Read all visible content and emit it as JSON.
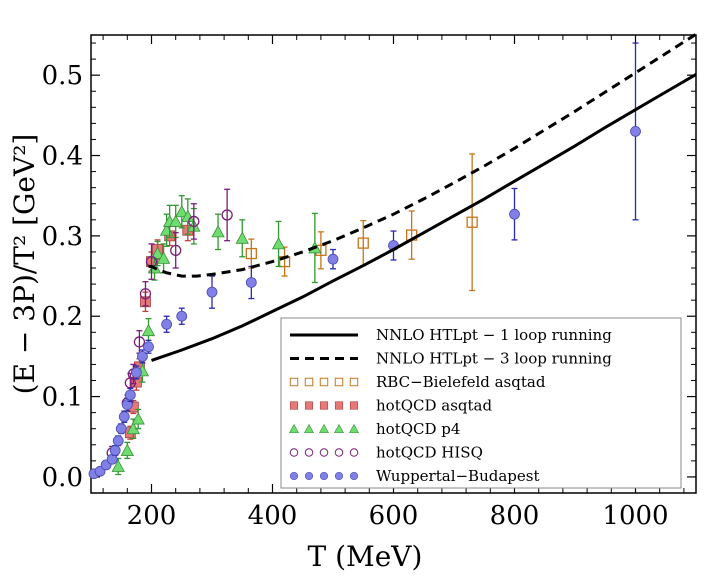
{
  "chart_data": {
    "type": "scatter",
    "xlabel": "T (MeV)",
    "ylabel": "(E − 3P)/T²  [GeV²]",
    "xlim": [
      100,
      1100
    ],
    "ylim": [
      -0.02,
      0.55
    ],
    "x_ticks": [
      200,
      400,
      600,
      800,
      1000
    ],
    "y_ticks": [
      0.0,
      0.1,
      0.2,
      0.3,
      0.4,
      0.5
    ],
    "x_tick_labels": [
      "200",
      "400",
      "600",
      "800",
      "1000"
    ],
    "y_tick_labels": [
      "0.0",
      "0.1",
      "0.2",
      "0.3",
      "0.4",
      "0.5"
    ],
    "legend_position": "bottom-right",
    "curves": [
      {
        "name": "NNLO HTLpt − 1 loop running",
        "style": "solid",
        "color": "#000000",
        "x": [
          200,
          250,
          300,
          350,
          400,
          450,
          500,
          550,
          600,
          650,
          700,
          750,
          800,
          850,
          900,
          950,
          1000,
          1050,
          1100
        ],
        "y": [
          0.145,
          0.158,
          0.172,
          0.188,
          0.206,
          0.224,
          0.244,
          0.263,
          0.283,
          0.304,
          0.325,
          0.346,
          0.368,
          0.39,
          0.412,
          0.435,
          0.457,
          0.479,
          0.501
        ]
      },
      {
        "name": "NNLO HTLpt − 3 loop running",
        "style": "dashed",
        "color": "#000000",
        "x": [
          195,
          200,
          210,
          225,
          250,
          275,
          300,
          350,
          400,
          450,
          500,
          550,
          600,
          650,
          700,
          750,
          800,
          850,
          900,
          950,
          1000,
          1050,
          1100
        ],
        "y": [
          0.262,
          0.262,
          0.258,
          0.254,
          0.25,
          0.25,
          0.252,
          0.258,
          0.268,
          0.28,
          0.294,
          0.31,
          0.327,
          0.346,
          0.366,
          0.387,
          0.409,
          0.432,
          0.455,
          0.479,
          0.503,
          0.527,
          0.551
        ]
      }
    ],
    "series": [
      {
        "name": "RBC−Bielefeld asqtad",
        "marker": "square-open",
        "color": "#c8741a",
        "x": [
          365,
          420,
          480,
          550,
          630,
          730
        ],
        "y": [
          0.278,
          0.268,
          0.282,
          0.291,
          0.301,
          0.317
        ],
        "err": [
          0.018,
          0.018,
          0.023,
          0.028,
          0.03,
          0.085
        ]
      },
      {
        "name": "hotQCD asqtad",
        "marker": "square-filled",
        "color": "#e87878",
        "x": [
          165,
          170,
          175,
          180,
          190,
          200,
          210,
          230,
          260
        ],
        "y": [
          0.055,
          0.087,
          0.118,
          0.137,
          0.218,
          0.268,
          0.283,
          0.3,
          0.307
        ],
        "err": [
          0.008,
          0.008,
          0.01,
          0.01,
          0.012,
          0.012,
          0.012,
          0.012,
          0.013
        ]
      },
      {
        "name": "hotQCD p4",
        "marker": "triangle",
        "color": "#6fdc6f",
        "x": [
          145,
          160,
          170,
          178,
          185,
          195,
          205,
          210,
          220,
          225,
          230,
          240,
          250,
          260,
          270,
          310,
          350,
          410,
          470
        ],
        "y": [
          0.013,
          0.033,
          0.06,
          0.072,
          0.132,
          0.182,
          0.26,
          0.278,
          0.272,
          0.307,
          0.318,
          0.318,
          0.33,
          0.324,
          0.312,
          0.305,
          0.297,
          0.29,
          0.285
        ],
        "err": [
          0.01,
          0.01,
          0.012,
          0.012,
          0.014,
          0.015,
          0.015,
          0.015,
          0.018,
          0.02,
          0.02,
          0.02,
          0.02,
          0.022,
          0.022,
          0.022,
          0.023,
          0.028,
          0.043
        ]
      },
      {
        "name": "hotQCD HISQ",
        "marker": "circle-open",
        "color": "#7a1e7a",
        "x": [
          135,
          160,
          165,
          170,
          180,
          190,
          200,
          240,
          270,
          325
        ],
        "y": [
          0.03,
          0.092,
          0.117,
          0.128,
          0.168,
          0.228,
          0.268,
          0.282,
          0.318,
          0.326
        ],
        "err": [
          0.008,
          0.01,
          0.012,
          0.012,
          0.014,
          0.015,
          0.022,
          0.022,
          0.022,
          0.032
        ]
      },
      {
        "name": "Wuppertal−Budapest",
        "marker": "circle-filled",
        "color": "#8080e6",
        "x": [
          105,
          115,
          125,
          135,
          140,
          145,
          150,
          155,
          160,
          165,
          175,
          185,
          195,
          225,
          250,
          300,
          365,
          500,
          600,
          800,
          1000
        ],
        "y": [
          0.004,
          0.007,
          0.015,
          0.022,
          0.033,
          0.045,
          0.06,
          0.075,
          0.09,
          0.102,
          0.13,
          0.15,
          0.162,
          0.19,
          0.2,
          0.23,
          0.242,
          0.271,
          0.288,
          0.327,
          0.43
        ],
        "err": [
          0.004,
          0.004,
          0.005,
          0.005,
          0.006,
          0.006,
          0.006,
          0.007,
          0.008,
          0.008,
          0.008,
          0.008,
          0.008,
          0.01,
          0.01,
          0.02,
          0.02,
          0.012,
          0.018,
          0.032,
          0.11
        ]
      }
    ]
  }
}
